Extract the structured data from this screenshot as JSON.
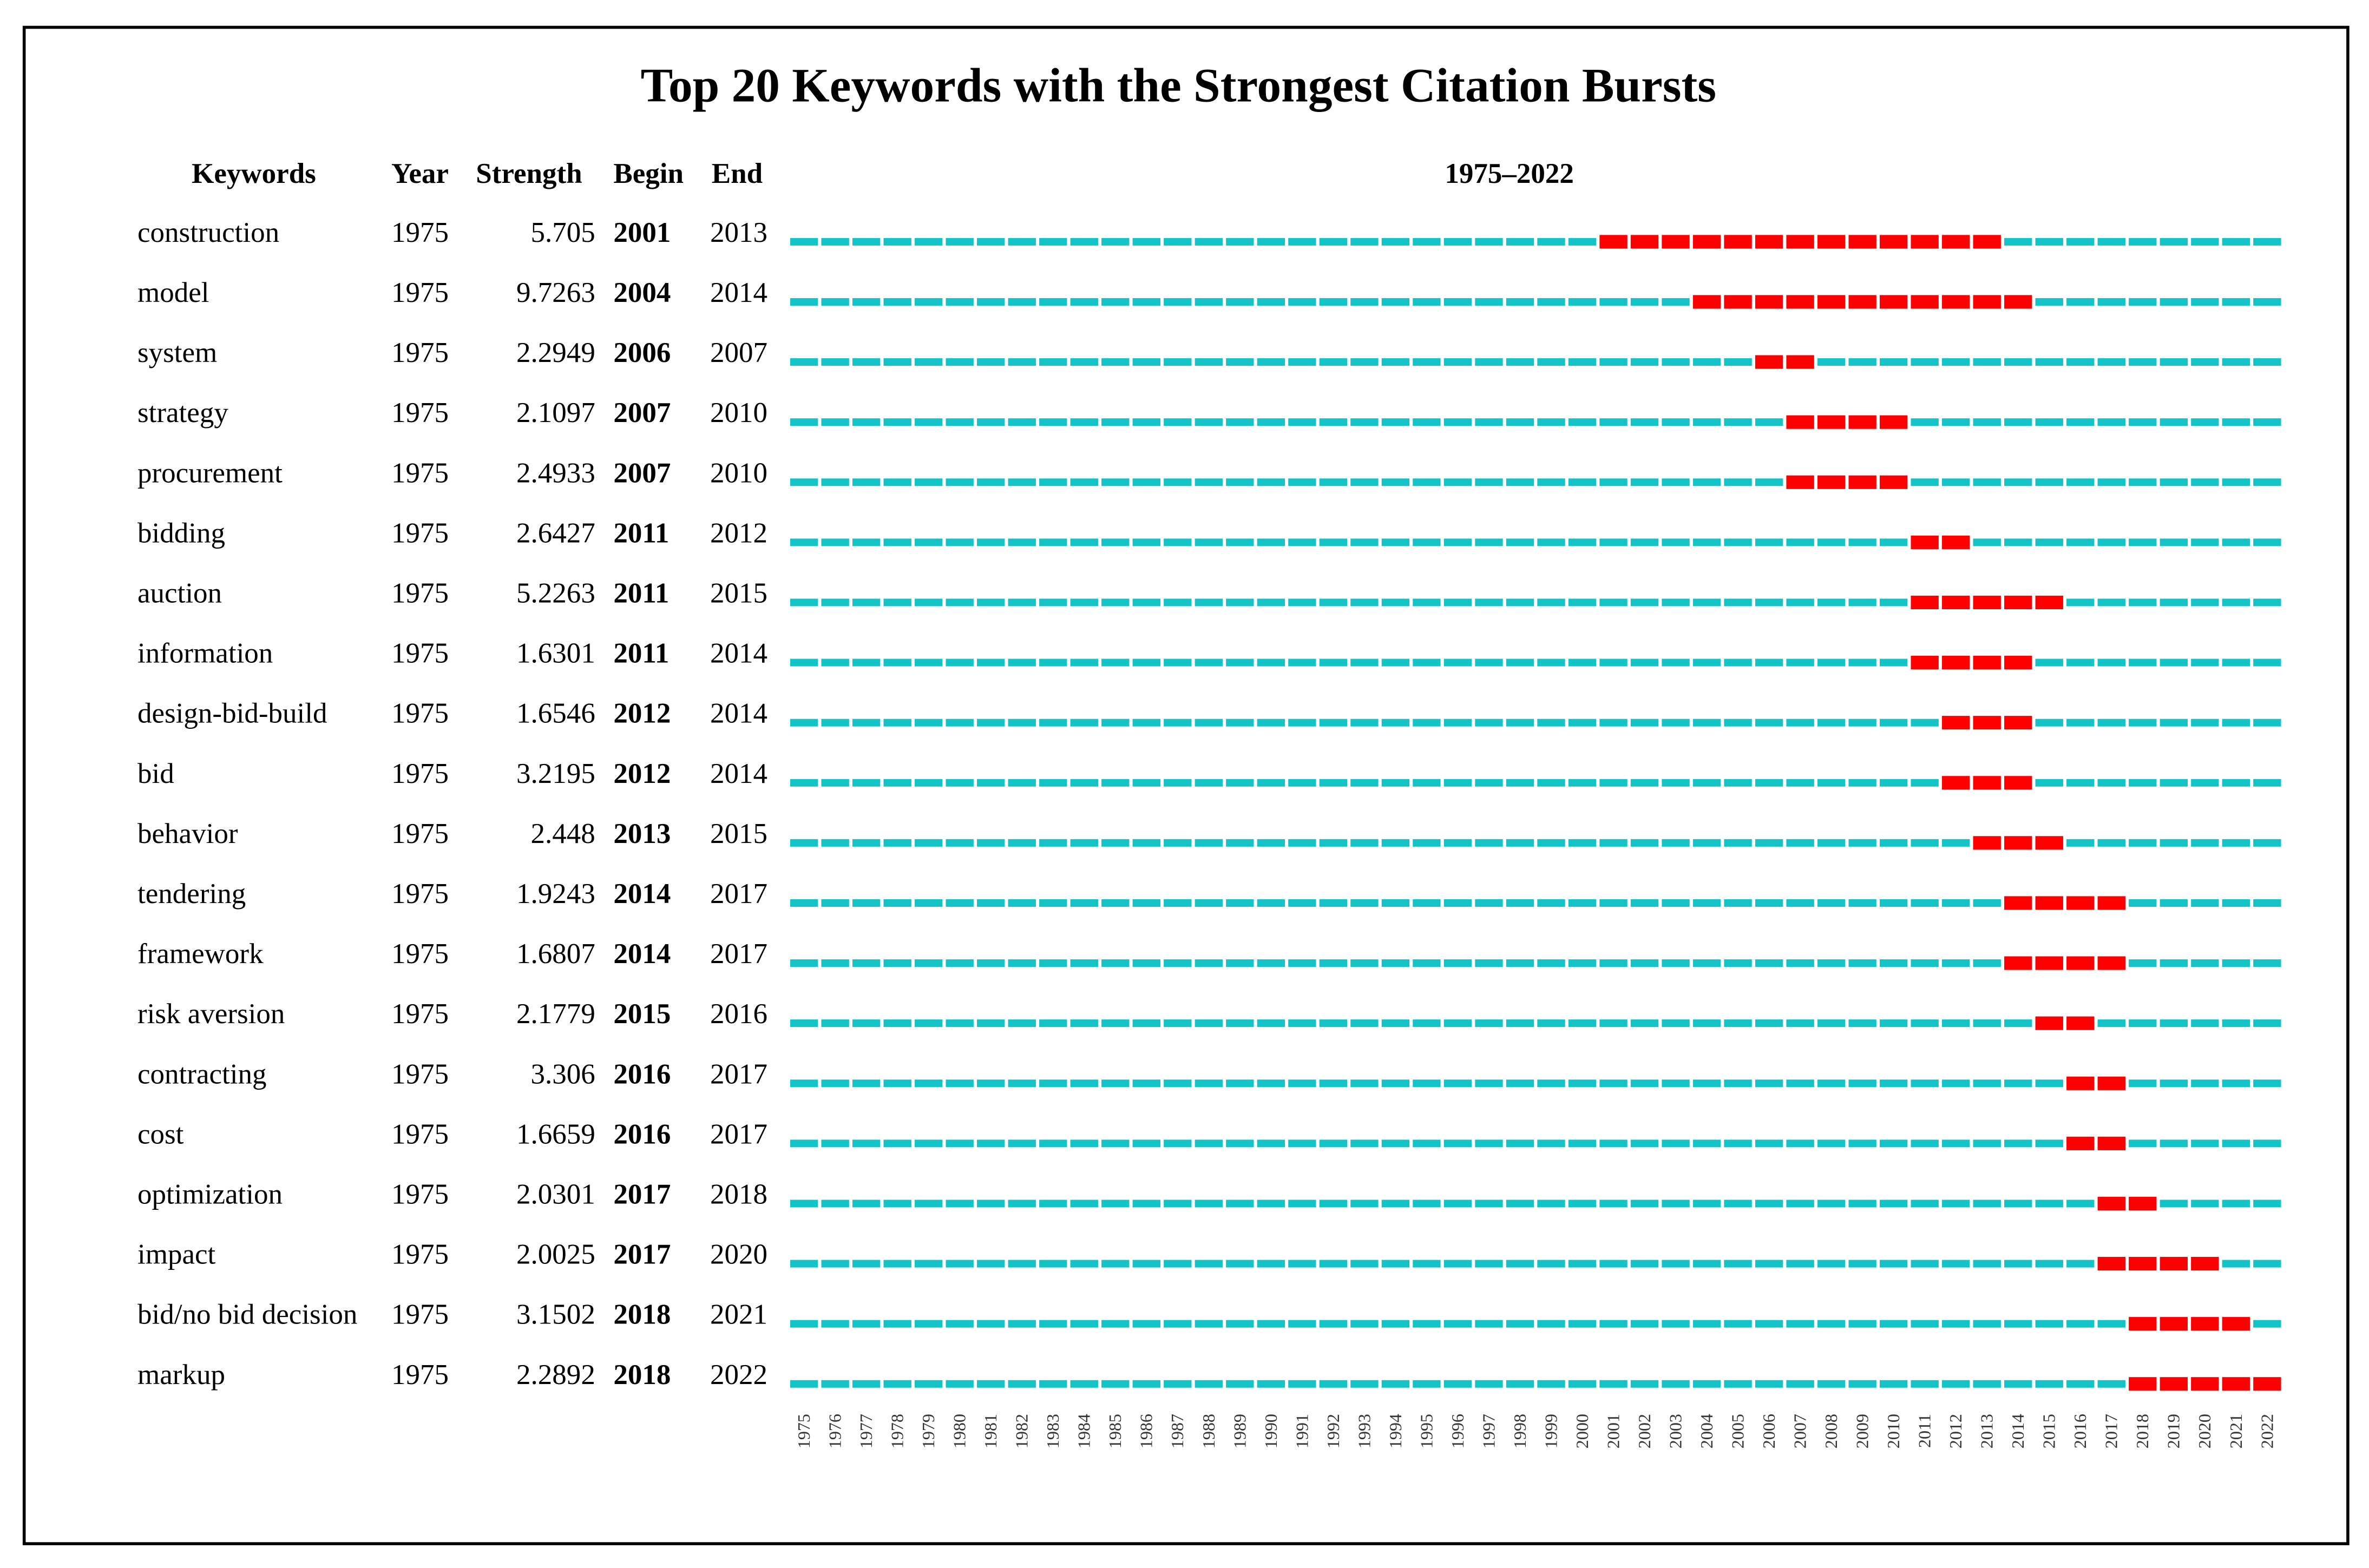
{
  "title": "Top 20 Keywords with the Strongest Citation Bursts",
  "columns": [
    "Keywords",
    "Year",
    "Strength",
    "Begin",
    "End"
  ],
  "timeline_label": "1975–2022",
  "colors": {
    "normal": "#13c3c6",
    "burst": "#ff0000"
  },
  "years": [
    1975,
    1976,
    1977,
    1978,
    1979,
    1980,
    1981,
    1982,
    1983,
    1984,
    1985,
    1986,
    1987,
    1988,
    1989,
    1990,
    1991,
    1992,
    1993,
    1994,
    1995,
    1996,
    1997,
    1998,
    1999,
    2000,
    2001,
    2002,
    2003,
    2004,
    2005,
    2006,
    2007,
    2008,
    2009,
    2010,
    2011,
    2012,
    2013,
    2014,
    2015,
    2016,
    2017,
    2018,
    2019,
    2020,
    2021,
    2022
  ],
  "rows": [
    {
      "keyword": "construction",
      "year": 1975,
      "strength": 5.705,
      "begin": 2001,
      "end": 2013
    },
    {
      "keyword": "model",
      "year": 1975,
      "strength": 9.7263,
      "begin": 2004,
      "end": 2014
    },
    {
      "keyword": "system",
      "year": 1975,
      "strength": 2.2949,
      "begin": 2006,
      "end": 2007
    },
    {
      "keyword": "strategy",
      "year": 1975,
      "strength": 2.1097,
      "begin": 2007,
      "end": 2010
    },
    {
      "keyword": "procurement",
      "year": 1975,
      "strength": 2.4933,
      "begin": 2007,
      "end": 2010
    },
    {
      "keyword": "bidding",
      "year": 1975,
      "strength": 2.6427,
      "begin": 2011,
      "end": 2012
    },
    {
      "keyword": "auction",
      "year": 1975,
      "strength": 5.2263,
      "begin": 2011,
      "end": 2015
    },
    {
      "keyword": "information",
      "year": 1975,
      "strength": 1.6301,
      "begin": 2011,
      "end": 2014
    },
    {
      "keyword": "design-bid-build",
      "year": 1975,
      "strength": 1.6546,
      "begin": 2012,
      "end": 2014
    },
    {
      "keyword": "bid",
      "year": 1975,
      "strength": 3.2195,
      "begin": 2012,
      "end": 2014
    },
    {
      "keyword": "behavior",
      "year": 1975,
      "strength": 2.448,
      "begin": 2013,
      "end": 2015
    },
    {
      "keyword": "tendering",
      "year": 1975,
      "strength": 1.9243,
      "begin": 2014,
      "end": 2017
    },
    {
      "keyword": "framework",
      "year": 1975,
      "strength": 1.6807,
      "begin": 2014,
      "end": 2017
    },
    {
      "keyword": "risk aversion",
      "year": 1975,
      "strength": 2.1779,
      "begin": 2015,
      "end": 2016
    },
    {
      "keyword": "contracting",
      "year": 1975,
      "strength": 3.306,
      "begin": 2016,
      "end": 2017
    },
    {
      "keyword": "cost",
      "year": 1975,
      "strength": 1.6659,
      "begin": 2016,
      "end": 2017
    },
    {
      "keyword": "optimization",
      "year": 1975,
      "strength": 2.0301,
      "begin": 2017,
      "end": 2018
    },
    {
      "keyword": "impact",
      "year": 1975,
      "strength": 2.0025,
      "begin": 2017,
      "end": 2020
    },
    {
      "keyword": "bid/no bid decision",
      "year": 1975,
      "strength": 3.1502,
      "begin": 2018,
      "end": 2021
    },
    {
      "keyword": "markup",
      "year": 1975,
      "strength": 2.2892,
      "begin": 2018,
      "end": 2022
    }
  ]
}
